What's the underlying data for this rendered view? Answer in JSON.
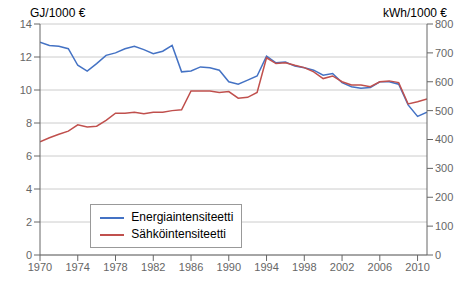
{
  "chart_data": {
    "type": "line",
    "x": [
      1970,
      1971,
      1972,
      1973,
      1974,
      1975,
      1976,
      1977,
      1978,
      1979,
      1980,
      1981,
      1982,
      1983,
      1984,
      1985,
      1986,
      1987,
      1988,
      1989,
      1990,
      1991,
      1992,
      1993,
      1994,
      1995,
      1996,
      1997,
      1998,
      1999,
      2000,
      2001,
      2002,
      2003,
      2004,
      2005,
      2006,
      2007,
      2008,
      2009,
      2010,
      2011
    ],
    "xlim": [
      1970,
      2011
    ],
    "xticks": [
      1970,
      1974,
      1978,
      1982,
      1986,
      1990,
      1994,
      1998,
      2002,
      2006,
      2010
    ],
    "ylim": [
      0,
      14
    ],
    "yticks": [
      0,
      2,
      4,
      6,
      8,
      10,
      12,
      14
    ],
    "y2lim": [
      0,
      800
    ],
    "y2ticks": [
      0,
      100,
      200,
      300,
      400,
      500,
      600,
      700,
      800
    ],
    "ylabel": "GJ/1000 €",
    "y2label": "kWh/1000 €",
    "grid": true,
    "legend": "lower left",
    "series": [
      {
        "name": "Energiaintensiteetti",
        "color": "#4472C4",
        "values": [
          12.9,
          12.7,
          12.65,
          12.5,
          11.5,
          11.15,
          11.6,
          12.1,
          12.25,
          12.5,
          12.65,
          12.45,
          12.2,
          12.35,
          12.7,
          11.1,
          11.15,
          11.4,
          11.35,
          11.2,
          10.5,
          10.35,
          10.6,
          10.85,
          12.05,
          11.65,
          11.7,
          11.45,
          11.35,
          11.2,
          10.9,
          11.0,
          10.45,
          10.2,
          10.1,
          10.15,
          10.5,
          10.5,
          10.35,
          9.1,
          8.4,
          8.65
        ]
      },
      {
        "name": "Sähköintensiteetti",
        "color": "#C0504D",
        "axis": "y2",
        "values": [
          392,
          406,
          418,
          429,
          451,
          443,
          446,
          466,
          491,
          491,
          494,
          489,
          494,
          494,
          500,
          503,
          568,
          568,
          568,
          563,
          566,
          543,
          546,
          563,
          683,
          663,
          666,
          657,
          649,
          634,
          611,
          620,
          600,
          589,
          589,
          583,
          600,
          603,
          597,
          523,
          531,
          540
        ]
      }
    ]
  }
}
